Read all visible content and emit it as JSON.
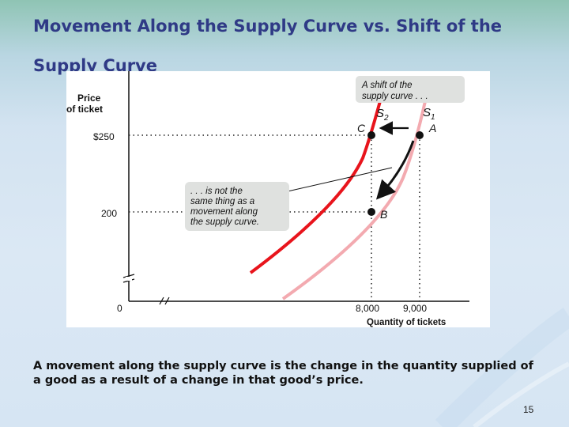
{
  "slide": {
    "title": "Movement Along the Supply Curve vs. Shift of the Supply Curve",
    "caption": "A movement along the supply curve is the change in the quantity supplied of a good as a result of a change in that good’s price.",
    "page_number": "15"
  },
  "colors": {
    "title": "#2f3a86",
    "curve_s1": "#f3aab0",
    "curve_s2": "#e8141c",
    "callout_fill": "#dfe1df"
  },
  "chart_data": {
    "type": "line",
    "ylabel": [
      "Price",
      "of ticket"
    ],
    "xlabel": "Quantity of tickets",
    "y_ticks": [
      {
        "label": "$250",
        "value": 250
      },
      {
        "label": "200",
        "value": 200
      },
      {
        "label": "0",
        "value": 0
      }
    ],
    "x_ticks": [
      {
        "label": "8,000",
        "value": 8000
      },
      {
        "label": "9,000",
        "value": 9000
      }
    ],
    "series": [
      {
        "name": "S₁"
      },
      {
        "name": "S₂"
      }
    ],
    "points": [
      {
        "label": "A",
        "x": 9000,
        "y": 250,
        "series": "S₁"
      },
      {
        "label": "B",
        "x": 8000,
        "y": 200,
        "series": "S₁"
      },
      {
        "label": "C",
        "x": 8000,
        "y": 250,
        "series": "S₂"
      }
    ],
    "annotations": [
      {
        "id": "shift",
        "lines": [
          "A shift of the",
          "supply curve . . ."
        ]
      },
      {
        "id": "movement",
        "lines": [
          ". . . is not the",
          "same thing as a",
          "movement along",
          "the supply curve."
        ]
      }
    ]
  }
}
